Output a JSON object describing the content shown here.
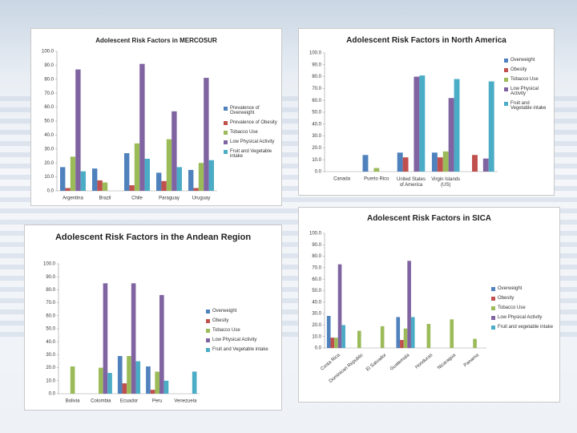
{
  "chart_data": [
    {
      "type": "bar",
      "title": "Adolescent Risk Factors in MERCOSUR",
      "legend": "right",
      "categories": [
        "Argentina",
        "Brazil",
        "Chile",
        "Paraguay",
        "Uruguay"
      ],
      "series": [
        {
          "name": "Prevalence of Overweight",
          "color": "#4f81bd",
          "values": [
            17,
            16,
            27,
            13,
            15
          ]
        },
        {
          "name": "Prevalence of Obesity",
          "color": "#c0504d",
          "values": [
            2,
            7.5,
            4,
            7,
            2
          ]
        },
        {
          "name": "Tobacco Use",
          "color": "#9bbb59",
          "values": [
            24.5,
            6,
            34,
            37,
            20
          ]
        },
        {
          "name": "Low Physical Activity",
          "color": "#8064a2",
          "values": [
            87,
            null,
            91,
            57,
            81
          ]
        },
        {
          "name": "Fruit and Vegetable intake",
          "color": "#4bacc6",
          "values": [
            14,
            null,
            23,
            17,
            22
          ]
        }
      ],
      "ylim": [
        0,
        100
      ],
      "yticks": [
        {
          "value": 0,
          "label": "0.0"
        },
        {
          "value": 10,
          "label": "10.0"
        },
        {
          "value": 20,
          "label": "20.0"
        },
        {
          "value": 30,
          "label": "30.0"
        },
        {
          "value": 40,
          "label": "40.0"
        },
        {
          "value": 50,
          "label": "50.0"
        },
        {
          "value": 60,
          "label": "60.0"
        },
        {
          "value": 70,
          "label": "70.0"
        },
        {
          "value": 80,
          "label": "80.0"
        },
        {
          "value": 90,
          "label": "90.0"
        },
        {
          "value": 100,
          "label": "100.0"
        }
      ]
    },
    {
      "type": "bar",
      "title": "Adolescent Risk Factors in North America",
      "legend": "right",
      "categories": [
        "Canada",
        "Puerto Rico",
        "United States of America",
        "Virgin Islands (US)",
        null
      ],
      "series": [
        {
          "name": "Overweight",
          "color": "#4f81bd",
          "values": [
            null,
            14,
            16,
            16,
            null
          ]
        },
        {
          "name": "Obesity",
          "color": "#c0504d",
          "values": [
            null,
            null,
            12,
            12,
            14
          ]
        },
        {
          "name": "Tobacco Use",
          "color": "#9bbb59",
          "values": [
            null,
            3,
            null,
            17,
            null
          ]
        },
        {
          "name": "Low Physical Activity",
          "color": "#8064a2",
          "values": [
            null,
            null,
            80,
            62,
            11
          ]
        },
        {
          "name": "Fruit and Vegetable intake",
          "color": "#4bacc6",
          "values": [
            null,
            null,
            81,
            78,
            76
          ]
        }
      ],
      "ylim": [
        0,
        100
      ],
      "yticks": [
        {
          "value": 0,
          "label": "0.0"
        },
        {
          "value": 10,
          "label": "10.0"
        },
        {
          "value": 20,
          "label": "20.0"
        },
        {
          "value": 30,
          "label": "30.0"
        },
        {
          "value": 40,
          "label": "40.0"
        },
        {
          "value": 50,
          "label": "50.0"
        },
        {
          "value": 60,
          "label": "60.0"
        },
        {
          "value": 70,
          "label": "70.0"
        },
        {
          "value": 80,
          "label": "80.0"
        },
        {
          "value": 90,
          "label": "90.0"
        },
        {
          "value": 100,
          "label": "100.0"
        }
      ]
    },
    {
      "type": "bar",
      "title": "Adolescent Risk Factors in the Andean Region",
      "legend": "right",
      "categories": [
        "Bolivia",
        "Colombia",
        "Ecuador",
        "Peru",
        "Venezuela"
      ],
      "series": [
        {
          "name": "Overweight",
          "color": "#4f81bd",
          "values": [
            null,
            null,
            29,
            21,
            null
          ]
        },
        {
          "name": "Obesity",
          "color": "#c0504d",
          "values": [
            null,
            null,
            8,
            3,
            null
          ]
        },
        {
          "name": "Tobacco Use",
          "color": "#9bbb59",
          "values": [
            21,
            20,
            29,
            17,
            null
          ]
        },
        {
          "name": "Low Physical Activity",
          "color": "#8064a2",
          "values": [
            null,
            85,
            85,
            76,
            null
          ]
        },
        {
          "name": "Fruit and Vegetable intake",
          "color": "#4bacc6",
          "values": [
            null,
            16,
            25,
            10,
            17
          ]
        }
      ],
      "ylim": [
        0,
        100
      ],
      "yticks": [
        {
          "value": 0,
          "label": "0.0"
        },
        {
          "value": 10,
          "label": "10.0"
        },
        {
          "value": 20,
          "label": "20.0"
        },
        {
          "value": 30,
          "label": "30.0"
        },
        {
          "value": 40,
          "label": "40.0"
        },
        {
          "value": 50,
          "label": "50.0"
        },
        {
          "value": 60,
          "label": "60.0"
        },
        {
          "value": 70,
          "label": "70.0"
        },
        {
          "value": 80,
          "label": "80.0"
        },
        {
          "value": 90,
          "label": "90.0"
        },
        {
          "value": 100,
          "label": "100.0"
        }
      ]
    },
    {
      "type": "bar",
      "title": "Adolescent Risk Factors in SICA",
      "legend": "right",
      "categories": [
        "Costa Rica",
        "Dominican Republic",
        "El Salvador",
        "Guatemala",
        "Honduras",
        "Nicaragua",
        "Panama"
      ],
      "series": [
        {
          "name": "Overweight",
          "color": "#4f81bd",
          "values": [
            28,
            null,
            null,
            27,
            null,
            null,
            null
          ]
        },
        {
          "name": "Obesity",
          "color": "#c0504d",
          "values": [
            9,
            null,
            null,
            7,
            null,
            null,
            null
          ]
        },
        {
          "name": "Tobacco Use",
          "color": "#9bbb59",
          "values": [
            9,
            15,
            19,
            17,
            21,
            25,
            8
          ]
        },
        {
          "name": "Low Physical Activity",
          "color": "#8064a2",
          "values": [
            73,
            null,
            null,
            76,
            null,
            null,
            null
          ]
        },
        {
          "name": "Fruit and vegetable intake",
          "color": "#4bacc6",
          "values": [
            20,
            null,
            null,
            27,
            null,
            null,
            null
          ]
        }
      ],
      "ylim": [
        0,
        100
      ],
      "yticks": [
        {
          "value": 0,
          "label": "0.0"
        },
        {
          "value": 10,
          "label": "10.0"
        },
        {
          "value": 20,
          "label": "20.0"
        },
        {
          "value": 30,
          "label": "30.0"
        },
        {
          "value": 40,
          "label": "40.0"
        },
        {
          "value": 50,
          "label": "50.0"
        },
        {
          "value": 60,
          "label": "60.0"
        },
        {
          "value": 70,
          "label": "70.0"
        },
        {
          "value": 80,
          "label": "80.0"
        },
        {
          "value": 90,
          "label": "90.0"
        },
        {
          "value": 100,
          "label": "100.0"
        }
      ]
    }
  ]
}
